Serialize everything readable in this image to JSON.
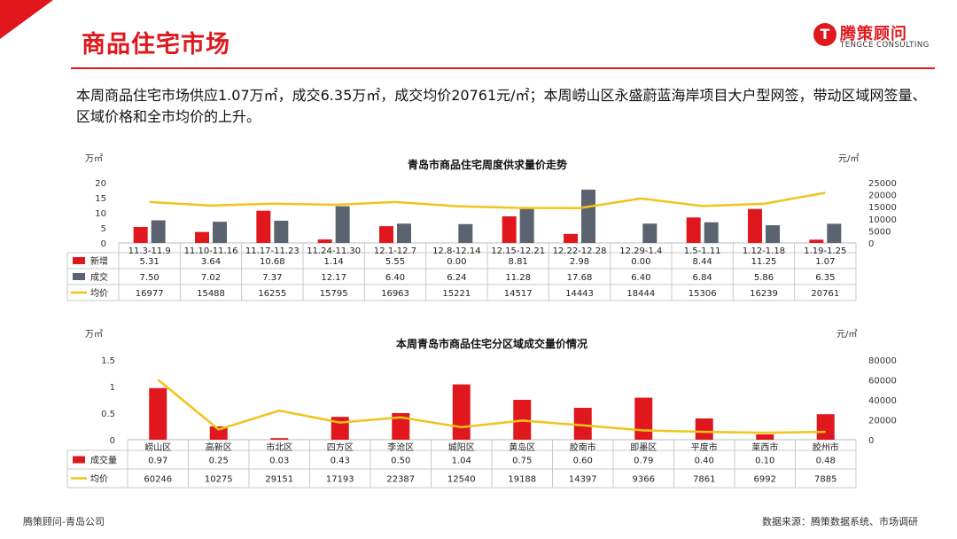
{
  "header": {
    "title": "商品住宅市场"
  },
  "logo": {
    "cn": "腾策顾问",
    "en": "TENGCE CONSULTING",
    "mark": "T"
  },
  "summary": "本周商品住宅市场供应1.07万㎡，成交6.35万㎡，成交均价20761元/㎡；本周崂山区永盛蔚蓝海岸项目大户型网签，带动区域网签量、区域价格和全市均价的上升。",
  "footer": {
    "left": "腾策顾问-青岛公司",
    "right": "数据来源：腾策数据系统、市场调研"
  },
  "colors": {
    "red": "#e0181e",
    "gray": "#5b6370",
    "yellow": "#f2c318"
  },
  "chart_data": [
    {
      "type": "bar",
      "title": "青岛市商品住宅周度供求量价走势",
      "left_unit": "万㎡",
      "right_unit": "元/㎡",
      "left_ticks": [
        0,
        5,
        10,
        15,
        20
      ],
      "right_ticks": [
        0,
        5000,
        10000,
        15000,
        20000,
        25000
      ],
      "ylim": [
        0,
        20
      ],
      "y2lim": [
        0,
        25000
      ],
      "categories": [
        "11.3-11.9",
        "11.10-11.16",
        "11.17-11.23",
        "11.24-11.30",
        "12.1-12.7",
        "12.8-12.14",
        "12.15-12.21",
        "12.22-12.28",
        "12.29-1.4",
        "1.5-1.11",
        "1.12-1.18",
        "1.19-1.25"
      ],
      "series": [
        {
          "name": "新增",
          "kind": "bar",
          "values": [
            5.31,
            3.64,
            10.68,
            1.14,
            5.55,
            0.0,
            8.81,
            2.98,
            0.0,
            8.44,
            11.25,
            1.07
          ],
          "labels": [
            "5.31",
            "3.64",
            "10.68",
            "1.14",
            "5.55",
            "0.00",
            "8.81",
            "2.98",
            "0.00",
            "8.44",
            "11.25",
            "1.07"
          ]
        },
        {
          "name": "成交",
          "kind": "bar",
          "values": [
            7.5,
            7.02,
            7.37,
            12.17,
            6.4,
            6.24,
            11.28,
            17.68,
            6.4,
            6.84,
            5.86,
            6.35
          ],
          "labels": [
            "7.50",
            "7.02",
            "7.37",
            "12.17",
            "6.40",
            "6.24",
            "11.28",
            "17.68",
            "6.40",
            "6.84",
            "5.86",
            "6.35"
          ]
        },
        {
          "name": "均价",
          "kind": "line",
          "values": [
            16977,
            15488,
            16255,
            15795,
            16963,
            15221,
            14517,
            14443,
            18444,
            15306,
            16239,
            20761
          ],
          "labels": [
            "16977",
            "15488",
            "16255",
            "15795",
            "16963",
            "15221",
            "14517",
            "14443",
            "18444",
            "15306",
            "16239",
            "20761"
          ]
        }
      ]
    },
    {
      "type": "bar",
      "title": "本周青岛市商品住宅分区域成交量价情况",
      "left_unit": "万㎡",
      "right_unit": "元/㎡",
      "left_ticks": [
        "0",
        "0.5",
        "1",
        "1.5"
      ],
      "left_tick_values": [
        0,
        0.5,
        1,
        1.5
      ],
      "right_ticks": [
        0,
        20000,
        40000,
        60000,
        80000
      ],
      "ylim": [
        0,
        1.5
      ],
      "y2lim": [
        0,
        80000
      ],
      "categories": [
        "崂山区",
        "高新区",
        "市北区",
        "四方区",
        "李沧区",
        "城阳区",
        "黄岛区",
        "胶南市",
        "即墨区",
        "平度市",
        "莱西市",
        "胶州市"
      ],
      "series": [
        {
          "name": "成交量",
          "kind": "bar",
          "values": [
            0.97,
            0.25,
            0.03,
            0.43,
            0.5,
            1.04,
            0.75,
            0.6,
            0.79,
            0.4,
            0.1,
            0.48
          ],
          "labels": [
            "0.97",
            "0.25",
            "0.03",
            "0.43",
            "0.50",
            "1.04",
            "0.75",
            "0.60",
            "0.79",
            "0.40",
            "0.10",
            "0.48"
          ]
        },
        {
          "name": "均价",
          "kind": "line",
          "values": [
            60246,
            10275,
            29151,
            17193,
            22387,
            12540,
            19188,
            14397,
            9366,
            7861,
            6992,
            7885
          ],
          "labels": [
            "60246",
            "10275",
            "29151",
            "17193",
            "22387",
            "12540",
            "19188",
            "14397",
            "9366",
            "7861",
            "6992",
            "7885"
          ]
        }
      ]
    }
  ]
}
